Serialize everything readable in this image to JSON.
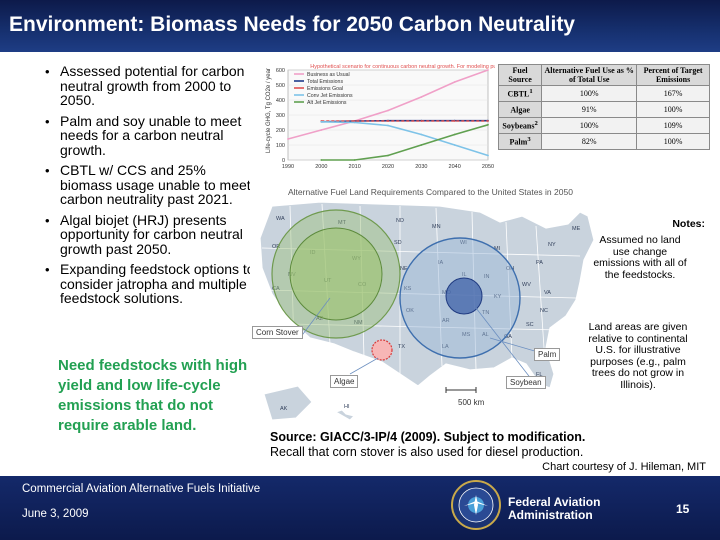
{
  "slide": {
    "title": "Environment: Biomass Needs for 2050 Carbon Neutrality",
    "bullets": [
      "Assessed potential for carbon neutral growth from 2000 to 2050.",
      "Palm and soy unable to meet needs for a carbon neutral growth.",
      "CBTL w/ CCS and 25% biomass usage unable to meet carbon neutrality past 2021.",
      "Algal biojet (HRJ) presents opportunity for carbon neutral growth past 2050.",
      "Expanding feedstock options to consider jatropha and multiple feedstock solutions."
    ],
    "callout": "Need feedstocks with high yield and low life-cycle emissions that do not require arable land.",
    "bullet_symbol": "•"
  },
  "figure": {
    "table": {
      "headers": [
        "Fuel Source",
        "Alternative Fuel Use as % of Total Use",
        "Percent of Target Emissions"
      ],
      "rows": [
        {
          "source": "CBTL",
          "sup": "1",
          "alt_use": "100%",
          "target": "167%"
        },
        {
          "source": "Algae",
          "sup": "",
          "alt_use": "91%",
          "target": "100%"
        },
        {
          "source": "Soybeans",
          "sup": "2",
          "alt_use": "100%",
          "target": "109%"
        },
        {
          "source": "Palm",
          "sup": "3",
          "alt_use": "82%",
          "target": "100%"
        }
      ]
    },
    "map": {
      "title": "Alternative Fuel Land Requirements Compared to the United States in 2050",
      "notes_title": "Notes:",
      "notes_1": "Assumed no land use change emissions with all of the feedstocks.",
      "notes_2": "Land areas are given relative to continental U.S. for illustrative purposes (e.g., palm trees do not grow in Illinois).",
      "labels": {
        "corn_stover": "Corn Stover",
        "algae": "Algae",
        "palm": "Palm",
        "soybean": "Soybean",
        "scale": "500 km"
      },
      "states": [
        "WA",
        "MT",
        "ND",
        "MN",
        "OR",
        "ID",
        "SD",
        "WI",
        "MI",
        "NY",
        "ME",
        "WY",
        "NE",
        "IA",
        "IL",
        "IN",
        "OH",
        "PA",
        "NV",
        "UT",
        "CO",
        "KS",
        "MO",
        "KY",
        "WV",
        "VA",
        "CA",
        "AZ",
        "NM",
        "OK",
        "AR",
        "TN",
        "NC",
        "TX",
        "LA",
        "MS",
        "AL",
        "GA",
        "SC",
        "AK",
        "HI",
        "FL"
      ]
    },
    "source_line": "Source: GIACC/3-IP/4 (2009). Subject to modification.",
    "recall_line": "Recall that corn stover is also used for diesel production."
  },
  "chart_data": {
    "type": "line",
    "title": "",
    "xlabel": "",
    "ylabel": "Life-cycle GHG, Tg CO2e / year",
    "xlim": [
      1990,
      2050
    ],
    "ylim": [
      0,
      600
    ],
    "x_ticks": [
      1990,
      2000,
      2010,
      2020,
      2030,
      2040,
      2050
    ],
    "y_ticks": [
      0,
      100,
      200,
      300,
      400,
      500,
      600
    ],
    "annotation": "Hypothetical scenario for continuous carbon neutral growth. For modeling purposes only.",
    "legend_position": "top-left",
    "series": [
      {
        "name": "Business as Usual",
        "color": "#f0a0c8",
        "x": [
          1990,
          2000,
          2010,
          2020,
          2030,
          2040,
          2050
        ],
        "y": [
          140,
          200,
          260,
          330,
          420,
          520,
          600
        ]
      },
      {
        "name": "Total Emissions",
        "color": "#1f3a8a",
        "x": [
          2000,
          2010,
          2020,
          2030,
          2040,
          2050
        ],
        "y": [
          255,
          260,
          262,
          262,
          262,
          262
        ]
      },
      {
        "name": "Emissions Goal",
        "color": "#e05050",
        "x": [
          2000,
          2010,
          2020,
          2030,
          2040,
          2050
        ],
        "y": [
          260,
          260,
          260,
          260,
          260,
          260
        ]
      },
      {
        "name": "Conv Jet Emissions",
        "color": "#7ec3e8",
        "x": [
          2000,
          2010,
          2020,
          2030,
          2040,
          2050
        ],
        "y": [
          255,
          250,
          230,
          170,
          100,
          30
        ]
      },
      {
        "name": "Alt Jet Emissions",
        "color": "#60a050",
        "x": [
          2000,
          2010,
          2020,
          2030,
          2040,
          2050
        ],
        "y": [
          0,
          0,
          30,
          100,
          170,
          235
        ]
      }
    ]
  },
  "credit": "Chart courtesy of J. Hileman, MIT",
  "footer": {
    "initiative": "Commercial Aviation Alternative Fuels Initiative",
    "date": "June 3, 2009",
    "agency_line1": "Federal Aviation",
    "agency_line2": "Administration",
    "page_number": "15"
  },
  "colors": {
    "title_bar": "#16306f",
    "footer": "#0c1a4c",
    "callout_green": "#22a052"
  }
}
